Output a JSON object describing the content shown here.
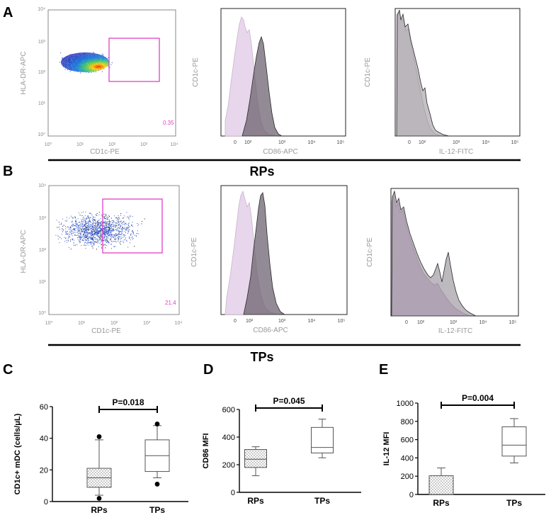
{
  "panel_letters": [
    "A",
    "B",
    "C",
    "D",
    "E"
  ],
  "group_labels": [
    "RPs",
    "TPs"
  ],
  "flow_panels": {
    "row_a": {
      "scatter": {
        "xlabel": "CD1c-PE",
        "ylabel": "HLA-DR-APC",
        "ticks": [
          "10⁰",
          "10¹",
          "10²",
          "10³",
          "10⁴"
        ],
        "gate_percent": "0.35"
      },
      "hist1": {
        "xlabel": "CD86-APC",
        "ylabel": "CD1c-PE",
        "ticks": [
          "0",
          "10²",
          "10³",
          "10⁴",
          "10⁵"
        ]
      },
      "hist2": {
        "xlabel": "IL-12-FITC",
        "ylabel": "CD1c-PE",
        "ticks": [
          "0",
          "10²",
          "10³",
          "10⁴",
          "10⁵"
        ]
      }
    },
    "row_b": {
      "scatter": {
        "xlabel": "CD1c-PE",
        "ylabel": "HLA-DR-APC",
        "ticks": [
          "10⁰",
          "10¹",
          "10²",
          "10³",
          "10⁴"
        ],
        "gate_percent": "21.4"
      },
      "hist1": {
        "xlabel": "CD86-APC",
        "ylabel": "CD1c-PE",
        "ticks": [
          "0",
          "10²",
          "10³",
          "10⁴",
          "10⁵"
        ]
      },
      "hist2": {
        "xlabel": "IL-12-FITC",
        "ylabel": "CD1c-PE",
        "ticks": [
          "0",
          "10²",
          "10³",
          "10⁴",
          "10⁵"
        ]
      }
    }
  },
  "chart_data": [
    {
      "type": "box",
      "panel": "C",
      "categories": [
        "RPs",
        "TPs"
      ],
      "ylabel": "CD1c+ mDC (cells/μL)",
      "ylim": [
        0,
        60
      ],
      "yticks": [
        0,
        20,
        40,
        60
      ],
      "significance": "P=0.018",
      "boxes": [
        {
          "name": "RPs",
          "whisker_low": 4,
          "q1": 9,
          "median": 15,
          "q3": 21,
          "whisker_high": 39,
          "outliers": [
            2,
            41
          ],
          "fill": "dotted"
        },
        {
          "name": "TPs",
          "whisker_low": 15,
          "q1": 19,
          "median": 29,
          "q3": 39,
          "whisker_high": 48,
          "outliers": [
            11,
            49
          ],
          "fill": "none"
        }
      ]
    },
    {
      "type": "box",
      "panel": "D",
      "categories": [
        "RPs",
        "TPs"
      ],
      "ylabel": "CD86 MFI",
      "ylim": [
        0,
        600
      ],
      "yticks": [
        0,
        200,
        400,
        600
      ],
      "significance": "P=0.045",
      "boxes": [
        {
          "name": "RPs",
          "whisker_low": 120,
          "q1": 180,
          "median": 240,
          "q3": 310,
          "whisker_high": 330,
          "outliers": [],
          "fill": "dotted"
        },
        {
          "name": "TPs",
          "whisker_low": 250,
          "q1": 285,
          "median": 325,
          "q3": 470,
          "whisker_high": 530,
          "outliers": [],
          "fill": "none"
        }
      ]
    },
    {
      "type": "box",
      "panel": "E",
      "categories": [
        "RPs",
        "TPs"
      ],
      "ylabel": "IL-12 MFI",
      "ylim": [
        0,
        1000
      ],
      "yticks": [
        0,
        200,
        400,
        600,
        800,
        1000
      ],
      "significance": "P=0.004",
      "boxes": [
        {
          "name": "RPs",
          "whisker_low": 0,
          "q1": 0,
          "median": 0,
          "q3": 205,
          "whisker_high": 290,
          "outliers": [],
          "fill": "dotted"
        },
        {
          "name": "TPs",
          "whisker_low": 345,
          "q1": 420,
          "median": 540,
          "q3": 740,
          "whisker_high": 830,
          "outliers": [],
          "fill": "none"
        }
      ]
    }
  ]
}
